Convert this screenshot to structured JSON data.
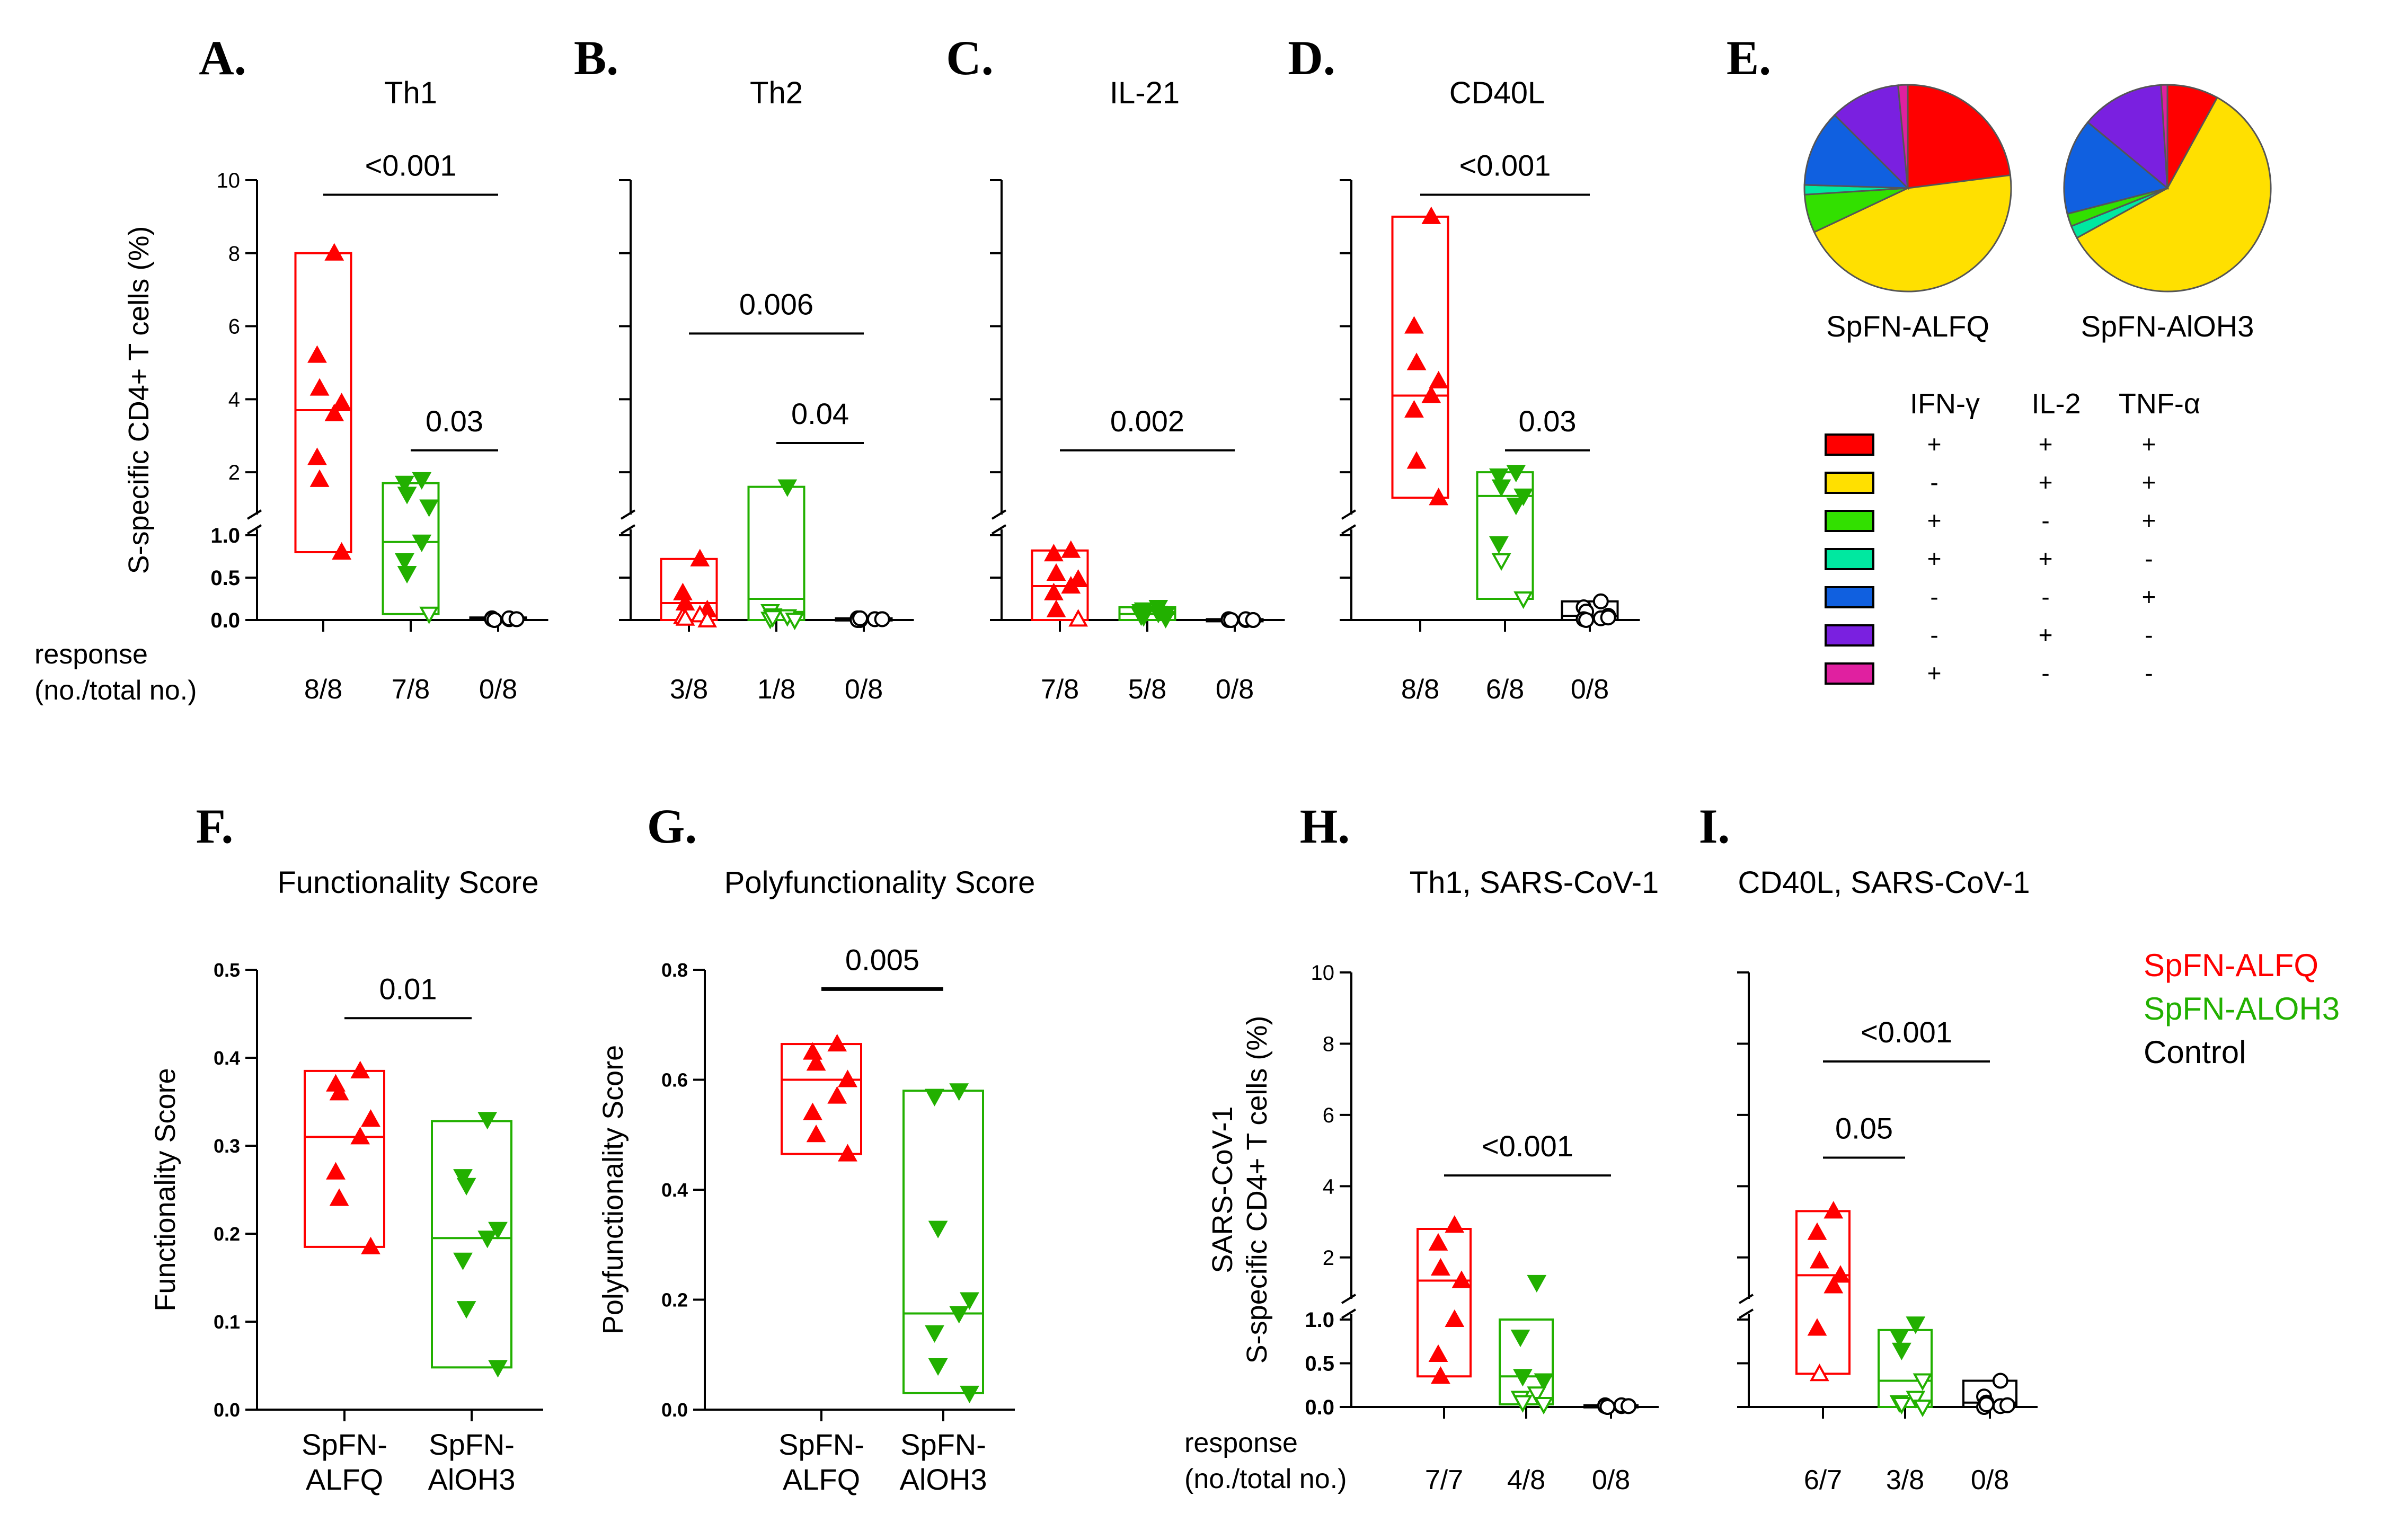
{
  "colors": {
    "alfq": "#ff0000",
    "aloh3": "#22b000",
    "control": "#000000",
    "axis": "#000000"
  },
  "chart_data": [
    {
      "id": "A",
      "panel_label": "A.",
      "type": "box",
      "title": "Th1",
      "ylabel": "S-specific CD4+ T cells (%)",
      "y_axis": {
        "broken": true,
        "lower_range": [
          0,
          1
        ],
        "upper_range": [
          1,
          10
        ],
        "lower_ticks": [
          "0.0",
          "0.5",
          "1.0"
        ],
        "upper_ticks": [
          "2",
          "4",
          "6",
          "8",
          "10"
        ]
      },
      "response_label": [
        "response",
        "(no./total no.)"
      ],
      "groups": [
        {
          "name": "SpFN-ALFQ",
          "color": "alfq",
          "marker": "triangle-up",
          "box": [
            0.8,
            3.7,
            8.0
          ],
          "points": [
            8.0,
            5.2,
            4.3,
            3.9,
            3.6,
            2.4,
            1.8,
            0.8
          ],
          "hollow": [],
          "response": "8/8"
        },
        {
          "name": "SpFN-AlOH3",
          "color": "aloh3",
          "marker": "triangle-down",
          "box": [
            0.07,
            0.92,
            1.7
          ],
          "points": [
            1.8,
            1.7,
            1.4,
            1.05,
            0.92,
            0.7,
            0.55,
            0.07
          ],
          "hollow": [
            7
          ],
          "response": "7/8"
        },
        {
          "name": "Control",
          "color": "control",
          "marker": "circle",
          "box": [
            0.0,
            0.01,
            0.03
          ],
          "points": [
            0.01,
            0.02,
            0.0,
            0.01,
            0.02,
            0.01,
            0.0,
            0.01
          ],
          "hollow": [
            0,
            1,
            2,
            3,
            4,
            5,
            6,
            7
          ],
          "response": "0/8"
        }
      ],
      "comparisons": [
        {
          "from": 0,
          "to": 2,
          "label": "<0.001",
          "y": 9.6
        },
        {
          "from": 1,
          "to": 2,
          "label": "0.03",
          "y": 2.6
        }
      ]
    },
    {
      "id": "B",
      "panel_label": "B.",
      "type": "box",
      "title": "Th2",
      "y_axis": {
        "broken": true,
        "lower_range": [
          0,
          1
        ],
        "upper_range": [
          1,
          10
        ],
        "lower_ticks": [],
        "upper_ticks": []
      },
      "groups": [
        {
          "name": "SpFN-ALFQ",
          "color": "alfq",
          "marker": "triangle-up",
          "box": [
            0.0,
            0.2,
            0.72
          ],
          "points": [
            0.72,
            0.32,
            0.2,
            0.12,
            0.06,
            0.04,
            0.02,
            0.0
          ],
          "hollow": [
            4,
            5,
            6,
            7
          ],
          "response": "3/8"
        },
        {
          "name": "SpFN-AlOH3",
          "color": "aloh3",
          "marker": "triangle-down",
          "box": [
            0.0,
            0.25,
            1.6
          ],
          "points": [
            1.6,
            0.1,
            0.05,
            0.02,
            0.04,
            0.01,
            0.03,
            0.0
          ],
          "hollow": [
            1,
            2,
            3,
            4,
            5,
            6,
            7
          ],
          "response": "1/8"
        },
        {
          "name": "Control",
          "color": "control",
          "marker": "circle",
          "box": [
            0.0,
            0.01,
            0.02
          ],
          "points": [
            0.01,
            0.02,
            0.0,
            0.01,
            0.01,
            0.0,
            0.02,
            0.01
          ],
          "hollow": [
            0,
            1,
            2,
            3,
            4,
            5,
            6,
            7
          ],
          "response": "0/8"
        }
      ],
      "comparisons": [
        {
          "from": 0,
          "to": 2,
          "label": "0.006",
          "y": 5.8
        },
        {
          "from": 1,
          "to": 2,
          "label": "0.04",
          "y": 2.8
        }
      ]
    },
    {
      "id": "C",
      "panel_label": "C.",
      "type": "box",
      "title": "IL-21",
      "y_axis": {
        "broken": true,
        "lower_range": [
          0,
          1
        ],
        "upper_range": [
          1,
          10
        ],
        "lower_ticks": [],
        "upper_ticks": []
      },
      "groups": [
        {
          "name": "SpFN-ALFQ",
          "color": "alfq",
          "marker": "triangle-up",
          "box": [
            0.0,
            0.4,
            0.82
          ],
          "points": [
            0.82,
            0.78,
            0.55,
            0.48,
            0.4,
            0.32,
            0.12,
            0.01
          ],
          "hollow": [
            7
          ],
          "response": "7/8"
        },
        {
          "name": "SpFN-AlOH3",
          "color": "aloh3",
          "marker": "triangle-down",
          "box": [
            0.0,
            0.07,
            0.15
          ],
          "points": [
            0.15,
            0.1,
            0.12,
            0.07,
            0.08,
            0.05,
            0.04,
            0.02
          ],
          "hollow": [],
          "response": "5/8"
        },
        {
          "name": "Control",
          "color": "control",
          "marker": "circle",
          "box": [
            0.0,
            0.0,
            0.01
          ],
          "points": [
            0.0,
            0.01,
            0.0,
            0.0,
            0.01,
            0.0,
            0.0,
            0.0
          ],
          "hollow": [
            0,
            1,
            2,
            3,
            4,
            5,
            6,
            7
          ],
          "response": "0/8"
        }
      ],
      "comparisons": [
        {
          "from": 0,
          "to": 2,
          "label": "0.002",
          "y": 2.6
        }
      ]
    },
    {
      "id": "D",
      "panel_label": "D.",
      "type": "box",
      "title": "CD40L",
      "y_axis": {
        "broken": true,
        "lower_range": [
          0,
          1
        ],
        "upper_range": [
          1,
          10
        ],
        "lower_ticks": [],
        "upper_ticks": []
      },
      "groups": [
        {
          "name": "SpFN-ALFQ",
          "color": "alfq",
          "marker": "triangle-up",
          "box": [
            1.3,
            4.1,
            9.0
          ],
          "points": [
            9.0,
            6.0,
            5.0,
            4.5,
            4.1,
            3.7,
            2.3,
            1.3
          ],
          "hollow": [],
          "response": "8/8"
        },
        {
          "name": "SpFN-AlOH3",
          "color": "aloh3",
          "marker": "triangle-down",
          "box": [
            0.25,
            1.35,
            2.0
          ],
          "points": [
            2.0,
            1.9,
            1.6,
            1.35,
            1.1,
            0.9,
            0.7,
            0.25
          ],
          "hollow": [
            6,
            7
          ],
          "response": "6/8"
        },
        {
          "name": "Control",
          "color": "control",
          "marker": "circle",
          "box": [
            0.0,
            0.05,
            0.22
          ],
          "points": [
            0.22,
            0.15,
            0.1,
            0.05,
            0.02,
            0.01,
            0.0,
            0.03
          ],
          "hollow": [
            0,
            1,
            2,
            3,
            4,
            5,
            6,
            7
          ],
          "response": "0/8"
        }
      ],
      "comparisons": [
        {
          "from": 0,
          "to": 2,
          "label": "<0.001",
          "y": 9.6
        },
        {
          "from": 1,
          "to": 2,
          "label": "0.03",
          "y": 2.6
        }
      ]
    },
    {
      "id": "E",
      "panel_label": "E.",
      "type": "pie",
      "pies": [
        {
          "label": "SpFN-ALFQ",
          "slices": [
            {
              "color": "#ff0000",
              "value": 23
            },
            {
              "color": "#ffe000",
              "value": 45
            },
            {
              "color": "#32e000",
              "value": 6
            },
            {
              "color": "#00e8a0",
              "value": 1.5
            },
            {
              "color": "#1060e0",
              "value": 12
            },
            {
              "color": "#7a20e0",
              "value": 11
            },
            {
              "color": "#e020a0",
              "value": 1.5
            }
          ]
        },
        {
          "label": "SpFN-AlOH3",
          "slices": [
            {
              "color": "#ff0000",
              "value": 8
            },
            {
              "color": "#ffe000",
              "value": 59
            },
            {
              "color": "#00e8a0",
              "value": 2
            },
            {
              "color": "#32e000",
              "value": 2
            },
            {
              "color": "#1060e0",
              "value": 15
            },
            {
              "color": "#7a20e0",
              "value": 13
            },
            {
              "color": "#e020a0",
              "value": 1
            }
          ]
        }
      ],
      "legend_headers": [
        "IFN-γ",
        "IL-2",
        "TNF-α"
      ],
      "legend_rows": [
        {
          "color": "#ff0000",
          "signs": [
            "+",
            "+",
            "+"
          ]
        },
        {
          "color": "#ffe000",
          "signs": [
            "-",
            "+",
            "+"
          ]
        },
        {
          "color": "#32e000",
          "signs": [
            "+",
            "-",
            "+"
          ]
        },
        {
          "color": "#00e8a0",
          "signs": [
            "+",
            "+",
            "-"
          ]
        },
        {
          "color": "#1060e0",
          "signs": [
            "-",
            "-",
            "+"
          ]
        },
        {
          "color": "#7a20e0",
          "signs": [
            "-",
            "+",
            "-"
          ]
        },
        {
          "color": "#e020a0",
          "signs": [
            "+",
            "-",
            "-"
          ]
        }
      ]
    },
    {
      "id": "F",
      "panel_label": "F.",
      "type": "box",
      "title": "Functionality Score",
      "ylabel": "Functionality Score",
      "y_axis": {
        "broken": false,
        "range": [
          0,
          0.5
        ],
        "ticks": [
          "0.0",
          "0.1",
          "0.2",
          "0.3",
          "0.4",
          "0.5"
        ]
      },
      "groups": [
        {
          "name": "SpFN-ALFQ",
          "color": "alfq",
          "marker": "triangle-up",
          "box": [
            0.185,
            0.31,
            0.385
          ],
          "points": [
            0.385,
            0.37,
            0.36,
            0.33,
            0.31,
            0.27,
            0.24,
            0.185
          ],
          "hollow": [],
          "xlabel": [
            "SpFN-",
            "ALFQ"
          ]
        },
        {
          "name": "SpFN-AlOH3",
          "color": "aloh3",
          "marker": "triangle-down",
          "box": [
            0.048,
            0.195,
            0.328
          ],
          "points": [
            0.33,
            0.265,
            0.255,
            0.205,
            0.195,
            0.17,
            0.115,
            0.048
          ],
          "hollow": [],
          "xlabel": [
            "SpFN-",
            "AlOH3"
          ]
        }
      ],
      "comparisons": [
        {
          "from": 0,
          "to": 1,
          "label": "0.01",
          "y": 0.445
        }
      ]
    },
    {
      "id": "G",
      "panel_label": "G.",
      "type": "box",
      "title": "Polyfunctionality Score",
      "ylabel": "Polyfunctionality Score",
      "y_axis": {
        "broken": false,
        "range": [
          0,
          0.8
        ],
        "ticks": [
          "0.0",
          "0.2",
          "0.4",
          "0.6",
          "0.8"
        ]
      },
      "groups": [
        {
          "name": "SpFN-ALFQ",
          "color": "alfq",
          "marker": "triangle-up",
          "box": [
            0.465,
            0.6,
            0.665
          ],
          "points": [
            0.665,
            0.65,
            0.63,
            0.6,
            0.57,
            0.54,
            0.5,
            0.465
          ],
          "hollow": [],
          "xlabel": [
            "SpFN-",
            "ALFQ"
          ]
        },
        {
          "name": "SpFN-AlOH3",
          "color": "aloh3",
          "marker": "triangle-down",
          "box": [
            0.03,
            0.175,
            0.58
          ],
          "points": [
            0.58,
            0.57,
            0.33,
            0.2,
            0.175,
            0.14,
            0.08,
            0.03
          ],
          "hollow": [],
          "xlabel": [
            "SpFN-",
            "AlOH3"
          ]
        }
      ],
      "comparisons": [
        {
          "from": 0,
          "to": 1,
          "label": "0.005",
          "y": 0.765
        }
      ]
    },
    {
      "id": "H",
      "panel_label": "H.",
      "type": "box",
      "title": "Th1, SARS-CoV-1",
      "ylabel": [
        "SARS-CoV-1",
        "S-specific CD4+ T cells (%)"
      ],
      "y_axis": {
        "broken": true,
        "lower_range": [
          0,
          1
        ],
        "upper_range": [
          1,
          10
        ],
        "lower_ticks": [
          "0.0",
          "0.5",
          "1.0"
        ],
        "upper_ticks": [
          "2",
          "4",
          "6",
          "8",
          "10"
        ]
      },
      "response_label": [
        "response",
        "(no./total no.)"
      ],
      "groups": [
        {
          "name": "SpFN-ALFQ",
          "color": "alfq",
          "marker": "triangle-up",
          "box": [
            0.35,
            1.35,
            2.8
          ],
          "points": [
            2.9,
            2.4,
            1.7,
            1.35,
            1.0,
            0.6,
            0.35
          ],
          "hollow": [],
          "response": "7/7"
        },
        {
          "name": "SpFN-AlOH3",
          "color": "aloh3",
          "marker": "triangle-down",
          "box": [
            0.03,
            0.35,
            1.0
          ],
          "points": [
            1.3,
            0.8,
            0.35,
            0.3,
            0.15,
            0.1,
            0.05,
            0.03
          ],
          "hollow": [
            4,
            5,
            6,
            7
          ],
          "response": "4/8"
        },
        {
          "name": "Control",
          "color": "control",
          "marker": "circle",
          "box": [
            0.0,
            0.01,
            0.02
          ],
          "points": [
            0.01,
            0.02,
            0.0,
            0.01,
            0.02,
            0.01,
            0.0,
            0.01
          ],
          "hollow": [
            0,
            1,
            2,
            3,
            4,
            5,
            6,
            7
          ],
          "response": "0/8"
        }
      ],
      "comparisons": [
        {
          "from": 0,
          "to": 2,
          "label": "<0.001",
          "y": 4.3
        }
      ]
    },
    {
      "id": "I",
      "panel_label": "I.",
      "type": "box",
      "title": "CD40L, SARS-CoV-1",
      "y_axis": {
        "broken": true,
        "lower_range": [
          0,
          1
        ],
        "upper_range": [
          1,
          10
        ],
        "lower_ticks": [],
        "upper_ticks": []
      },
      "groups": [
        {
          "name": "SpFN-ALFQ",
          "color": "alfq",
          "marker": "triangle-up",
          "box": [
            0.38,
            1.5,
            3.3
          ],
          "points": [
            3.3,
            2.7,
            1.9,
            1.5,
            1.2,
            0.9,
            0.38
          ],
          "hollow": [
            6
          ],
          "response": "6/7"
        },
        {
          "name": "SpFN-AlOH3",
          "color": "aloh3",
          "marker": "triangle-down",
          "box": [
            0.0,
            0.3,
            0.88
          ],
          "points": [
            0.95,
            0.8,
            0.65,
            0.3,
            0.1,
            0.05,
            0.03,
            0.0
          ],
          "hollow": [
            3,
            4,
            5,
            6,
            7
          ],
          "response": "3/8"
        },
        {
          "name": "Control",
          "color": "control",
          "marker": "circle",
          "box": [
            0.0,
            0.05,
            0.3
          ],
          "points": [
            0.3,
            0.12,
            0.05,
            0.02,
            0.01,
            0.0,
            0.03,
            0.02
          ],
          "hollow": [
            0,
            1,
            2,
            3,
            4,
            5,
            6,
            7
          ],
          "response": "0/8"
        }
      ],
      "comparisons": [
        {
          "from": 0,
          "to": 2,
          "label": "<0.001",
          "y": 7.5
        },
        {
          "from": 0,
          "to": 1,
          "label": "0.05",
          "y": 4.8
        }
      ]
    }
  ],
  "legend": [
    {
      "label": "SpFN-ALFQ",
      "color": "alfq"
    },
    {
      "label": "SpFN-ALOH3",
      "color": "aloh3"
    },
    {
      "label": "Control",
      "color": "control"
    }
  ]
}
